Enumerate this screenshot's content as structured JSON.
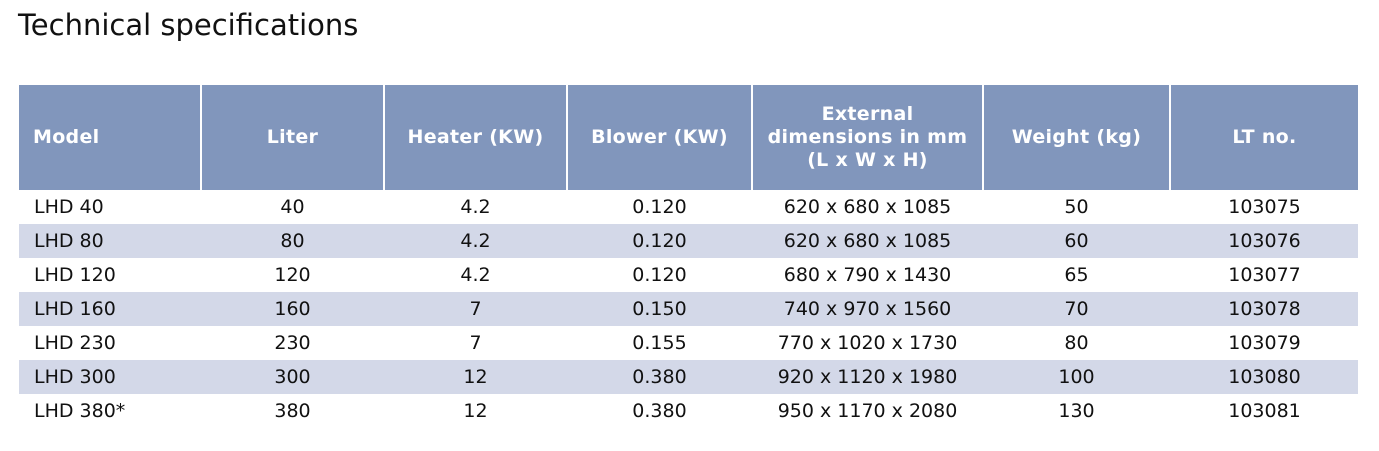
{
  "title": "Technical specifications",
  "table": {
    "header": [
      "Model",
      "Liter",
      "Heater (KW)",
      "Blower (KW)",
      "External dimensions in mm (L x W x H)",
      "Weight (kg)",
      "LT no."
    ],
    "rows": [
      [
        "LHD 40",
        "40",
        "4.2",
        "0.120",
        "620 x 680 x 1085",
        "50",
        "103075"
      ],
      [
        "LHD 80",
        "80",
        "4.2",
        "0.120",
        "620 x 680 x 1085",
        "60",
        "103076"
      ],
      [
        "LHD 120",
        "120",
        "4.2",
        "0.120",
        "680 x 790 x 1430",
        "65",
        "103077"
      ],
      [
        "LHD 160",
        "160",
        "7",
        "0.150",
        "740 x 970 x 1560",
        "70",
        "103078"
      ],
      [
        "LHD 230",
        "230",
        "7",
        "0.155",
        "770 x 1020 x 1730",
        "80",
        "103079"
      ],
      [
        "LHD 300",
        "300",
        "12",
        "0.380",
        "920 x 1120 x 1980",
        "100",
        "103080"
      ],
      [
        "LHD 380*",
        "380",
        "12",
        "0.380",
        "950 x 1170 x 2080",
        "130",
        "103081"
      ]
    ]
  }
}
